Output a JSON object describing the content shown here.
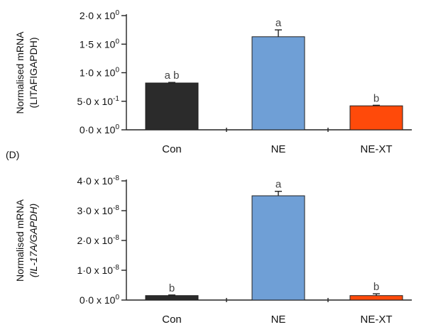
{
  "panels": [
    {
      "tag": "",
      "ylabel_lines": [
        "Normalised mRNA",
        "(LITAFIGAPDH)"
      ],
      "ylabel_italic": [
        false,
        false
      ],
      "yticks": [
        {
          "value": 0.0,
          "mant": "0·0 x 10",
          "exp": "0"
        },
        {
          "value": 0.5,
          "mant": "5·0 x 10",
          "exp": "-1"
        },
        {
          "value": 1.0,
          "mant": "1·0 x 10",
          "exp": "0"
        },
        {
          "value": 1.5,
          "mant": "1·5 x 10",
          "exp": "0"
        },
        {
          "value": 2.0,
          "mant": "2·0 x 10",
          "exp": "0"
        }
      ],
      "chart_data": {
        "type": "bar",
        "categories": [
          "Con",
          "NE",
          "NE-XT"
        ],
        "values": [
          0.82,
          1.63,
          0.42
        ],
        "errors": [
          0.01,
          0.12,
          0.01
        ],
        "significance": [
          "a b",
          "a",
          "b"
        ],
        "colors": [
          "#2b2b2b",
          "#6f9fd6",
          "#ff4a0a"
        ],
        "ylim": [
          0,
          2.0
        ]
      }
    },
    {
      "tag": "(D)",
      "ylabel_lines": [
        "Normalised mRNA",
        "(IL-17A/GAPDH)"
      ],
      "ylabel_italic": [
        false,
        true
      ],
      "yticks": [
        {
          "value": 0.0,
          "mant": "0·0 x 10",
          "exp": "0"
        },
        {
          "value": 1.0,
          "mant": "1·0 x 10",
          "exp": "-8"
        },
        {
          "value": 2.0,
          "mant": "2·0 x 10",
          "exp": "-8"
        },
        {
          "value": 3.0,
          "mant": "3·0 x 10",
          "exp": "-8"
        },
        {
          "value": 4.0,
          "mant": "4·0 x 10",
          "exp": "-8"
        }
      ],
      "chart_data": {
        "type": "bar",
        "categories": [
          "Con",
          "NE",
          "NE-XT"
        ],
        "values": [
          0.15,
          3.5,
          0.15
        ],
        "errors": [
          0.02,
          0.15,
          0.06
        ],
        "significance": [
          "b",
          "a",
          "b"
        ],
        "colors": [
          "#2b2b2b",
          "#6f9fd6",
          "#ff4a0a"
        ],
        "ylim": [
          0,
          4.0
        ],
        "units_note": "values in units of 10^-8"
      }
    }
  ]
}
